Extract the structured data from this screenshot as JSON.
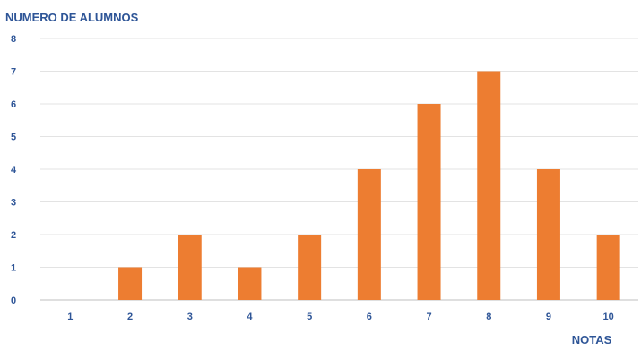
{
  "chart_data": {
    "type": "bar",
    "title": "",
    "ylabel": "NUMERO DE ALUMNOS",
    "xlabel": "NOTAS",
    "categories": [
      "1",
      "2",
      "3",
      "4",
      "5",
      "6",
      "7",
      "8",
      "9",
      "10"
    ],
    "values": [
      0,
      1,
      2,
      1,
      2,
      4,
      6,
      7,
      4,
      2
    ],
    "ylim": [
      0,
      8
    ],
    "yticks": [
      0,
      1,
      2,
      3,
      4,
      5,
      6,
      7,
      8
    ],
    "grid": true,
    "legend": "none"
  },
  "colors": {
    "bar": "#ED7D31",
    "label": "#2E5597",
    "grid": "#E3E3E3",
    "axis": "#BFBFBF"
  }
}
